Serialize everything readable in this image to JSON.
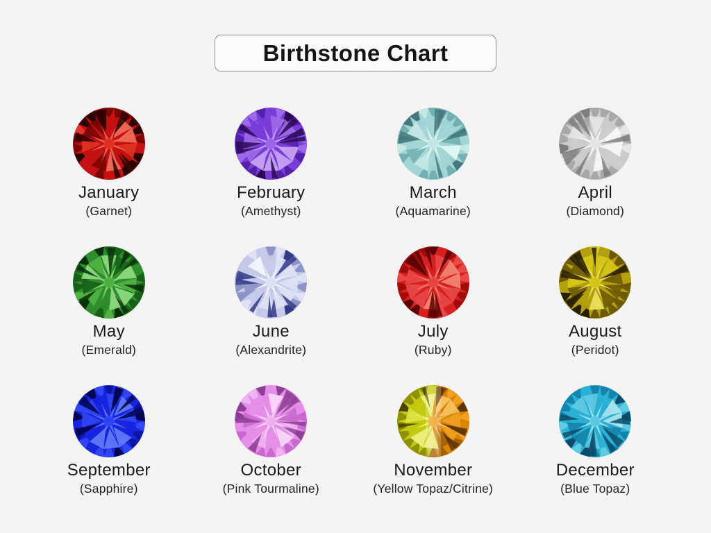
{
  "page": {
    "background_color": "#f4f4f5"
  },
  "title": {
    "label": "Birthstone Chart",
    "border_color": "#8c8c8c",
    "background_color": "#fbfbfb",
    "text_color": "#151515"
  },
  "gems": [
    {
      "month": "January",
      "stone": "(Garnet)",
      "palette": [
        "#2a0202",
        "#7a0606",
        "#c41111",
        "#e23326",
        "#f2705c"
      ]
    },
    {
      "month": "February",
      "stone": "(Amethyst)",
      "palette": [
        "#2a0a52",
        "#5420a8",
        "#7a3cd8",
        "#9c6ae8",
        "#c8a6f4"
      ]
    },
    {
      "month": "March",
      "stone": "(Aquamarine)",
      "palette": [
        "#44787e",
        "#74b0b2",
        "#a2d6d4",
        "#c4e8e4",
        "#e6f8f6"
      ]
    },
    {
      "month": "April",
      "stone": "(Diamond)",
      "palette": [
        "#7e7e80",
        "#a8a8aa",
        "#cccccc",
        "#e6e6e4",
        "#fafaf8"
      ]
    },
    {
      "month": "May",
      "stone": "(Emerald)",
      "palette": [
        "#0a300a",
        "#186018",
        "#2e8e2e",
        "#50b240",
        "#92dc82"
      ]
    },
    {
      "month": "June",
      "stone": "(Alexandrite)",
      "palette": [
        "#323a88",
        "#8c94c8",
        "#c4cae8",
        "#dee2f4",
        "#f6f8fe"
      ]
    },
    {
      "month": "July",
      "stone": "(Ruby)",
      "palette": [
        "#5a0404",
        "#a00c0c",
        "#d82020",
        "#e84848",
        "#f48874"
      ]
    },
    {
      "month": "August",
      "stone": "(Peridot)",
      "palette": [
        "#281e02",
        "#6e5a06",
        "#b4a00e",
        "#d8c816",
        "#efe35e"
      ]
    },
    {
      "month": "September",
      "stone": "(Sapphire)",
      "palette": [
        "#020650",
        "#0c14a6",
        "#1724e0",
        "#3046f2",
        "#607ef8"
      ]
    },
    {
      "month": "October",
      "stone": "(Pink Tourmaline)",
      "palette": [
        "#8e3e94",
        "#ca68ce",
        "#e48ee8",
        "#f0b4f2",
        "#f9daf9"
      ]
    },
    {
      "month": "November",
      "stone": "(Yellow Topaz/Citrine)",
      "palette": [
        "#4c4402",
        "#8e9006",
        "#c4ca10",
        "#dee440",
        "#f0f282"
      ],
      "palette2": [
        "#5e3402",
        "#a46004",
        "#da840c",
        "#f0a01e",
        "#f8c462"
      ]
    },
    {
      "month": "December",
      "stone": "(Blue Topaz)",
      "palette": [
        "#0c4c68",
        "#1484ac",
        "#2ab0d4",
        "#60cae2",
        "#ace6ee"
      ]
    }
  ]
}
